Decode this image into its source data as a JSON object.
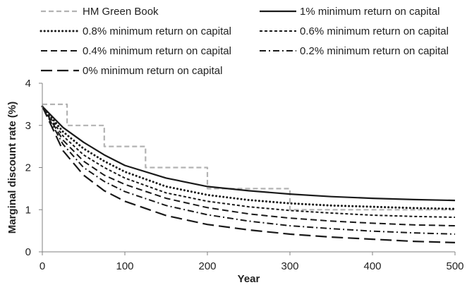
{
  "chart_data": {
    "type": "line",
    "title": "",
    "xlabel": "Year",
    "ylabel": "Marginal discount rate (%)",
    "xlim": [
      0,
      500
    ],
    "ylim": [
      0,
      4
    ],
    "x_ticks": [
      "0",
      "100",
      "200",
      "300",
      "400",
      "500"
    ],
    "y_ticks": [
      "0",
      "1",
      "2",
      "3",
      "4"
    ],
    "grid": false,
    "legend_position": "top",
    "series": [
      {
        "name": "HM Green Book",
        "style": "dashed",
        "color": "#b3b3b3",
        "x": [
          0,
          30,
          30,
          75,
          75,
          125,
          125,
          200,
          200,
          300,
          300,
          500
        ],
        "y": [
          3.5,
          3.5,
          3.0,
          3.0,
          2.5,
          2.5,
          2.0,
          2.0,
          1.5,
          1.5,
          1.0,
          1.0
        ]
      },
      {
        "name": "1% minimum return on capital",
        "style": "solid",
        "color": "#1a1a1a",
        "x": [
          0,
          25,
          50,
          75,
          100,
          150,
          200,
          250,
          300,
          350,
          400,
          450,
          500
        ],
        "y": [
          3.45,
          2.95,
          2.6,
          2.3,
          2.05,
          1.75,
          1.55,
          1.45,
          1.37,
          1.31,
          1.27,
          1.24,
          1.22
        ]
      },
      {
        "name": "0.8% minimum return on capital",
        "style": "dotted",
        "color": "#1a1a1a",
        "x": [
          0,
          25,
          50,
          75,
          100,
          150,
          200,
          250,
          300,
          350,
          400,
          450,
          500
        ],
        "y": [
          3.45,
          2.85,
          2.45,
          2.15,
          1.9,
          1.55,
          1.35,
          1.23,
          1.15,
          1.1,
          1.07,
          1.04,
          1.02
        ]
      },
      {
        "name": "0.6% minimum return on capital",
        "style": "short-dash",
        "color": "#1a1a1a",
        "x": [
          0,
          25,
          50,
          75,
          100,
          150,
          200,
          250,
          300,
          350,
          400,
          450,
          500
        ],
        "y": [
          3.45,
          2.75,
          2.3,
          2.0,
          1.75,
          1.4,
          1.2,
          1.07,
          0.98,
          0.92,
          0.87,
          0.84,
          0.82
        ]
      },
      {
        "name": "0.4% minimum return on capital",
        "style": "medium-dash",
        "color": "#1a1a1a",
        "x": [
          0,
          25,
          50,
          75,
          100,
          150,
          200,
          250,
          300,
          350,
          400,
          450,
          500
        ],
        "y": [
          3.45,
          2.65,
          2.15,
          1.82,
          1.6,
          1.27,
          1.05,
          0.9,
          0.8,
          0.73,
          0.68,
          0.64,
          0.62
        ]
      },
      {
        "name": "0.2% minimum return on capital",
        "style": "dash-dot",
        "color": "#1a1a1a",
        "x": [
          0,
          25,
          50,
          75,
          100,
          150,
          200,
          250,
          300,
          350,
          400,
          450,
          500
        ],
        "y": [
          3.45,
          2.55,
          2.0,
          1.67,
          1.43,
          1.1,
          0.88,
          0.73,
          0.62,
          0.55,
          0.49,
          0.45,
          0.42
        ]
      },
      {
        "name": "0% minimum return on capital",
        "style": "long-dash",
        "color": "#1a1a1a",
        "x": [
          0,
          25,
          50,
          75,
          100,
          150,
          200,
          250,
          300,
          350,
          400,
          450,
          500
        ],
        "y": [
          3.45,
          2.4,
          1.82,
          1.45,
          1.2,
          0.86,
          0.65,
          0.52,
          0.42,
          0.35,
          0.3,
          0.25,
          0.22
        ]
      }
    ]
  }
}
